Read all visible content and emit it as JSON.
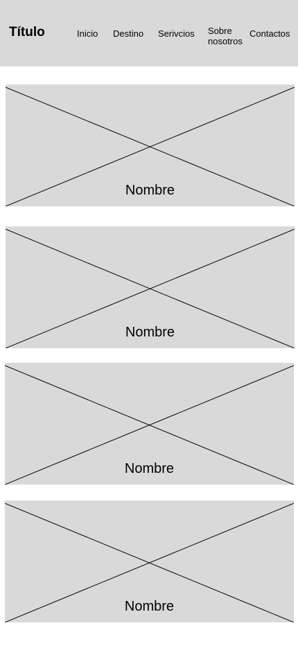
{
  "header": {
    "title": "Título",
    "nav": [
      {
        "label": "Inicio"
      },
      {
        "label": "Destino"
      },
      {
        "label": "Serivcios"
      },
      {
        "label": "Sobre nosotros"
      },
      {
        "label": "Contactos"
      }
    ]
  },
  "cards": [
    {
      "label": "Nombre"
    },
    {
      "label": "Nombre"
    },
    {
      "label": "Nombre"
    },
    {
      "label": "Nombre"
    }
  ],
  "colors": {
    "header_bg": "#d9d9d9",
    "card_bg": "#d9d9d9",
    "text": "#000000"
  }
}
